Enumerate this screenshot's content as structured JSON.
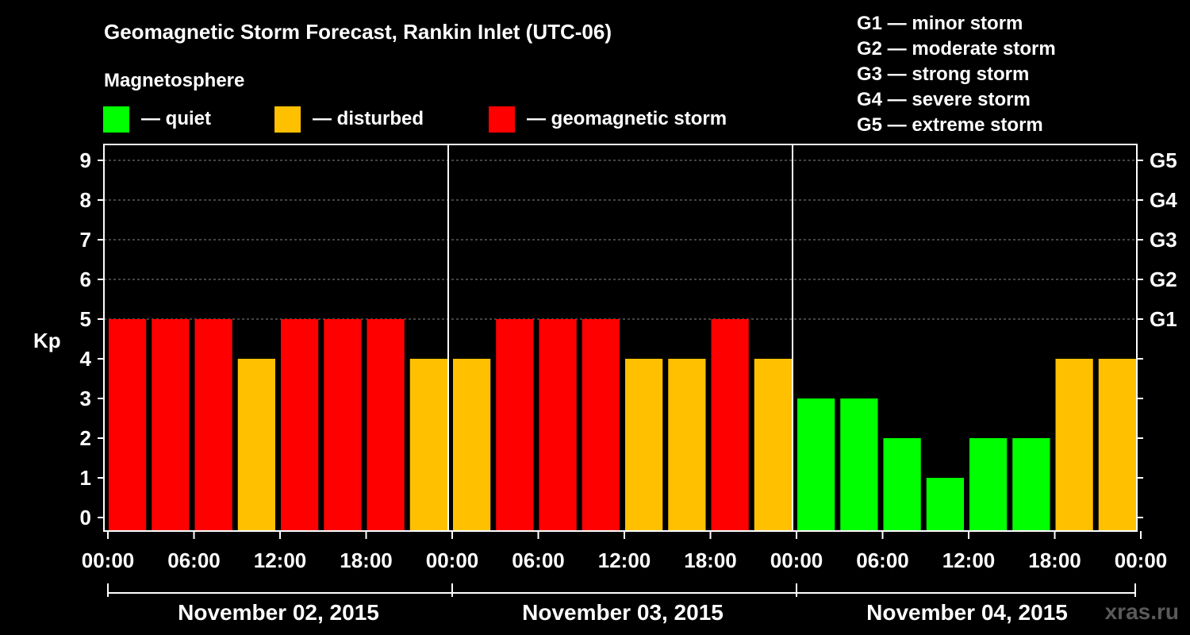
{
  "chart_data": {
    "type": "bar",
    "title": "Geomagnetic Storm Forecast, Rankin Inlet (UTC-06)",
    "legend_title": "Magnetosphere",
    "legend": [
      {
        "label": "— quiet",
        "color": "#00ff00"
      },
      {
        "label": "— disturbed",
        "color": "#ffc000"
      },
      {
        "label": "— geomagnetic storm",
        "color": "#ff0000"
      }
    ],
    "scale_legend": [
      "G1 — minor storm",
      "G2 — moderate storm",
      "G3 — strong storm",
      "G4 — severe storm",
      "G5 — extreme storm"
    ],
    "ylabel": "Kp",
    "ylim": [
      0,
      9
    ],
    "yticks": [
      "0",
      "1",
      "2",
      "3",
      "4",
      "5",
      "6",
      "7",
      "8",
      "9"
    ],
    "right_ticks": [
      {
        "kp": 5,
        "label": "G1"
      },
      {
        "kp": 6,
        "label": "G2"
      },
      {
        "kp": 7,
        "label": "G3"
      },
      {
        "kp": 8,
        "label": "G4"
      },
      {
        "kp": 9,
        "label": "G5"
      }
    ],
    "x_ticks": [
      "00:00",
      "06:00",
      "12:00",
      "18:00",
      "00:00",
      "06:00",
      "12:00",
      "18:00",
      "00:00",
      "06:00",
      "12:00",
      "18:00",
      "00:00"
    ],
    "days": [
      "November 02, 2015",
      "November 03, 2015",
      "November 04, 2015"
    ],
    "colors": {
      "quiet": "#00ff00",
      "disturbed": "#ffc000",
      "storm": "#ff0000"
    },
    "values": [
      5,
      5,
      5,
      4,
      5,
      5,
      5,
      4,
      4,
      5,
      5,
      5,
      4,
      4,
      5,
      4,
      3,
      3,
      2,
      1,
      2,
      2,
      4,
      4
    ],
    "grid": true
  },
  "watermark": "xras.ru"
}
